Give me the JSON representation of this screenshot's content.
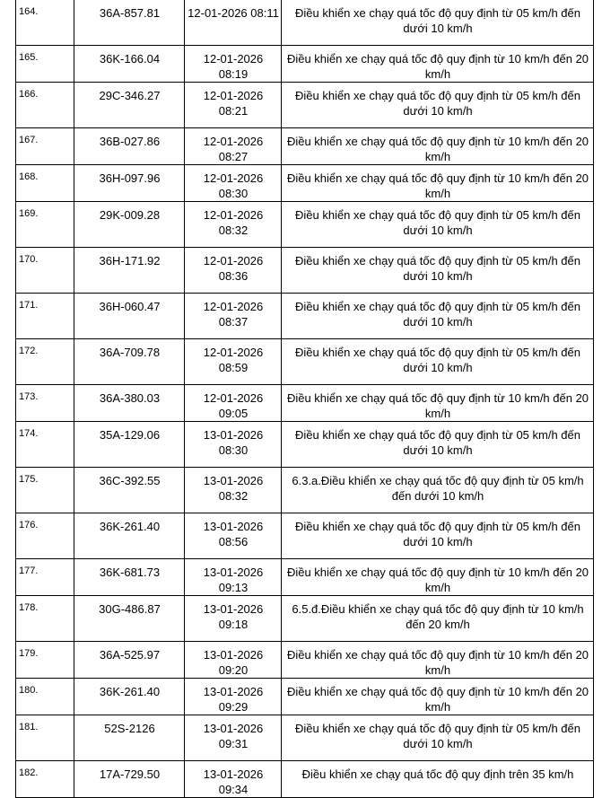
{
  "rows": [
    {
      "no": "164.",
      "plate": "36A-857.81",
      "time": "12-01-2026 08:11",
      "violation": "Điều khiển xe chạy quá tốc độ quy định từ 05 km/h đến dưới 10 km/h"
    },
    {
      "no": "165.",
      "plate": "36K-166.04",
      "time": "12-01-2026 08:19",
      "violation": "Điều khiển xe chạy quá tốc độ quy định từ 10 km/h đến 20 km/h"
    },
    {
      "no": "166.",
      "plate": "29C-346.27",
      "time": "12-01-2026 08:21",
      "violation": "Điều khiển xe chạy quá tốc độ quy định từ 05 km/h đến dưới 10 km/h"
    },
    {
      "no": "167.",
      "plate": "36B-027.86",
      "time": "12-01-2026 08:27",
      "violation": "Điều khiển xe chạy quá tốc độ quy định từ 10 km/h đến 20 km/h"
    },
    {
      "no": "168.",
      "plate": "36H-097.96",
      "time": "12-01-2026 08:30",
      "violation": "Điều khiển xe chạy quá tốc độ quy định từ 10 km/h đến 20 km/h"
    },
    {
      "no": "169.",
      "plate": "29K-009.28",
      "time": "12-01-2026 08:32",
      "violation": "Điều khiển xe chạy quá tốc độ quy định từ 05 km/h đến dưới 10 km/h"
    },
    {
      "no": "170.",
      "plate": "36H-171.92",
      "time": "12-01-2026 08:36",
      "violation": "Điều khiển xe chạy quá tốc độ quy định từ 05 km/h đến dưới 10 km/h"
    },
    {
      "no": "171.",
      "plate": "36H-060.47",
      "time": "12-01-2026 08:37",
      "violation": "Điều khiển xe chạy quá tốc độ quy định từ 05 km/h đến dưới 10 km/h"
    },
    {
      "no": "172.",
      "plate": "36A-709.78",
      "time": "12-01-2026 08:59",
      "violation": "Điều khiển xe chạy quá tốc độ quy định từ 05 km/h đến dưới 10 km/h"
    },
    {
      "no": "173.",
      "plate": "36A-380.03",
      "time": "12-01-2026 09:05",
      "violation": "Điều khiển xe chạy quá tốc độ quy định từ 10 km/h đến 20 km/h"
    },
    {
      "no": "174.",
      "plate": "35A-129.06",
      "time": "13-01-2026 08:30",
      "violation": "Điều khiển xe chạy quá tốc độ quy định từ 05 km/h đến dưới 10 km/h"
    },
    {
      "no": "175.",
      "plate": "36C-392.55",
      "time": "13-01-2026 08:32",
      "violation": "6.3.a.Điều khiển xe chạy quá tốc độ quy định từ 05 km/h đến dưới 10 km/h"
    },
    {
      "no": "176.",
      "plate": "36K-261.40",
      "time": "13-01-2026 08:56",
      "violation": "Điều khiển xe chạy quá tốc độ quy định từ 05 km/h đến dưới 10 km/h"
    },
    {
      "no": "177.",
      "plate": "36K-681.73",
      "time": "13-01-2026 09:13",
      "violation": "Điều khiển xe chạy quá tốc độ quy định từ 10 km/h đến 20 km/h"
    },
    {
      "no": "178.",
      "plate": "30G-486.87",
      "time": "13-01-2026 09:18",
      "violation": "6.5.đ.Điều khiển xe chạy quá tốc độ quy định từ 10 km/h đến 20 km/h"
    },
    {
      "no": "179.",
      "plate": "36A-525.97",
      "time": "13-01-2026 09:20",
      "violation": "Điều khiển xe chạy quá tốc độ quy định từ 10 km/h đến 20 km/h"
    },
    {
      "no": "180.",
      "plate": "36K-261.40",
      "time": "13-01-2026 09:29",
      "violation": "Điều khiển xe chạy quá tốc độ quy định từ 10 km/h đến 20 km/h"
    },
    {
      "no": "181.",
      "plate": "52S-2126",
      "time": "13-01-2026 09:31",
      "violation": "Điều khiển xe chạy quá tốc độ quy định từ 05 km/h đến dưới 10 km/h"
    },
    {
      "no": "182.",
      "plate": "17A-729.50",
      "time": "13-01-2026 09:34",
      "violation": "Điều khiển xe chạy quá tốc độ quy định trên 35 km/h"
    }
  ]
}
